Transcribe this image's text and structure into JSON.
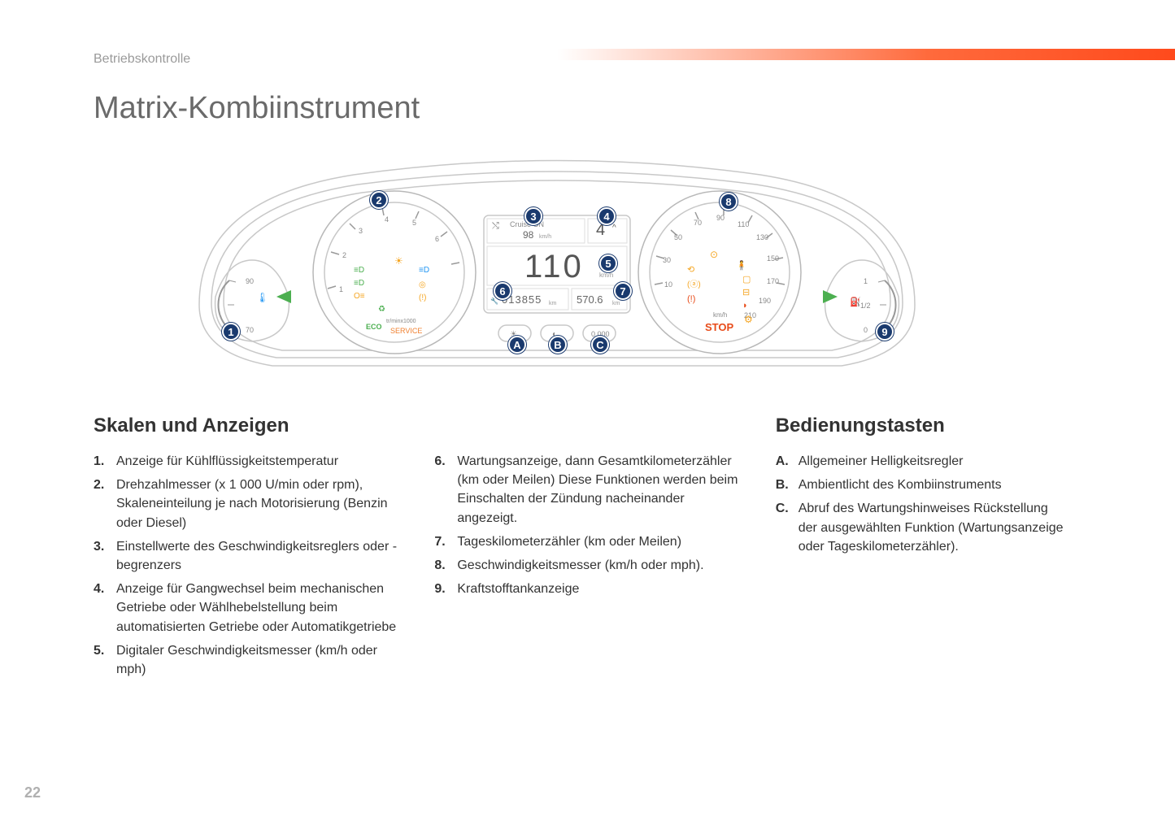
{
  "header": {
    "section": "Betriebskontrolle",
    "title": "Matrix-Kombiinstrument",
    "page_number": "22"
  },
  "diagram": {
    "center_lcd": {
      "cruise_label": "Cruise  ON",
      "cruise_speed": "98",
      "cruise_unit": "km/h",
      "gear": "4",
      "gear_arrow": "^",
      "speed": "110",
      "speed_unit": "km/h",
      "odometer": "013855",
      "odo_unit": "km",
      "trip": "570.6",
      "trip_unit": "km"
    },
    "left_gauge": {
      "rpm_scale": [
        "1",
        "2",
        "3",
        "4",
        "5",
        "6"
      ],
      "service": "SERVICE",
      "rpm_unit": "tr/minx1000",
      "eco": "ECO"
    },
    "right_gauge": {
      "speed_scale": [
        "10",
        "30",
        "50",
        "70",
        "90",
        "110",
        "130",
        "150",
        "170",
        "190",
        "210"
      ],
      "stop": "STOP",
      "unit": "km/h"
    },
    "temp_gauge": {
      "scale": [
        "70",
        "90"
      ]
    },
    "fuel_gauge": {
      "scale": [
        "0",
        "1/2",
        "1"
      ]
    },
    "callouts": {
      "1": "1",
      "2": "2",
      "3": "3",
      "4": "4",
      "5": "5",
      "6": "6",
      "7": "7",
      "8": "8",
      "9": "9",
      "A": "A",
      "B": "B",
      "C": "C"
    },
    "colors": {
      "callout_bg": "#1a3a6e",
      "outline": "#c8c8c8",
      "stop": "#e84c1a",
      "service": "#f08030",
      "eco": "#4caf50",
      "arrow": "#4caf50",
      "blue_icon": "#2196f3",
      "amber_icon": "#f5a623"
    }
  },
  "sections": {
    "skalen": {
      "heading": "Skalen und Anzeigen",
      "items_left": [
        {
          "n": "1.",
          "t": "Anzeige für Kühlflüssigkeitstemperatur"
        },
        {
          "n": "2.",
          "t": "Drehzahlmesser (x 1 000 U/min oder rpm), Skaleneinteilung je nach Motorisierung (Benzin oder Diesel)"
        },
        {
          "n": "3.",
          "t": "Einstellwerte des Geschwindigkeitsreglers oder -begrenzers"
        },
        {
          "n": "4.",
          "t": "Anzeige für Gangwechsel beim mechanischen Getriebe oder Wählhebelstellung beim automatisierten Getriebe oder Automatikgetriebe"
        },
        {
          "n": "5.",
          "t": "Digitaler Geschwindigkeitsmesser (km/h oder mph)"
        }
      ],
      "items_right": [
        {
          "n": "6.",
          "t": "Wartungsanzeige, dann Gesamtkilometerzähler (km oder Meilen) Diese Funktionen werden beim Einschalten der Zündung nacheinander angezeigt."
        },
        {
          "n": "7.",
          "t": "Tageskilometerzähler (km oder Meilen)"
        },
        {
          "n": "8.",
          "t": "Geschwindigkeitsmesser (km/h oder mph)."
        },
        {
          "n": "9.",
          "t": "Kraftstofftankanzeige"
        }
      ]
    },
    "bedienung": {
      "heading": "Bedienungstasten",
      "items": [
        {
          "n": "A.",
          "t": "Allgemeiner Helligkeitsregler"
        },
        {
          "n": "B.",
          "t": "Ambientlicht des Kombiinstruments"
        },
        {
          "n": "C.",
          "t": "Abruf des Wartungshinweises Rückstellung der ausgewählten Funktion (Wartungsanzeige oder Tageskilometerzähler)."
        }
      ]
    }
  }
}
